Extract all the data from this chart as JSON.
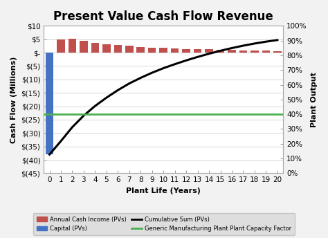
{
  "title": "Present Value Cash Flow Revenue",
  "xlabel": "Plant Life (Years)",
  "ylabel_left": "Cash Flow (Millions)",
  "ylabel_right": "Plant Output",
  "years": [
    0,
    1,
    2,
    3,
    4,
    5,
    6,
    7,
    8,
    9,
    10,
    11,
    12,
    13,
    14,
    15,
    16,
    17,
    18,
    19,
    20
  ],
  "annual_cash": [
    0,
    5.0,
    5.2,
    4.3,
    3.6,
    3.1,
    2.8,
    2.5,
    2.1,
    1.9,
    1.7,
    1.5,
    1.4,
    1.3,
    1.2,
    1.1,
    1.0,
    0.9,
    0.8,
    0.7,
    0.6
  ],
  "capital": -38.0,
  "cumulative": [
    -38.0,
    -33.0,
    -27.8,
    -23.5,
    -19.9,
    -16.8,
    -14.0,
    -11.5,
    -9.4,
    -7.5,
    -5.8,
    -4.3,
    -2.9,
    -1.6,
    -0.4,
    0.7,
    1.7,
    2.6,
    3.4,
    4.1,
    4.7
  ],
  "capacity_factor_pct": 40.0,
  "ylim_left": [
    -45,
    10
  ],
  "ylim_right": [
    0,
    100
  ],
  "bar_color_red": "#C0504D",
  "bar_color_blue": "#4472C4",
  "line_color_black": "#000000",
  "line_color_green": "#4CAF50",
  "bg_color": "#F2F2F2",
  "plot_bg": "#FFFFFF",
  "legend_bg": "#D9D9D9",
  "title_fontsize": 12,
  "label_fontsize": 8,
  "tick_fontsize": 7.5
}
